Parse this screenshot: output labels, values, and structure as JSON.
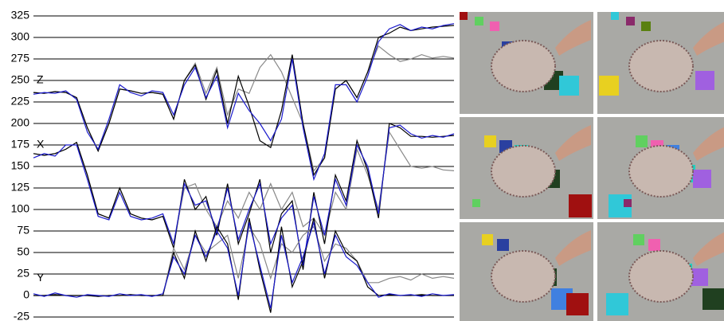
{
  "chart_data": {
    "type": "line",
    "ylim": [
      -25,
      325
    ],
    "yticks": [
      -25,
      0,
      25,
      50,
      75,
      100,
      125,
      150,
      175,
      200,
      225,
      250,
      275,
      300,
      325
    ],
    "grid": true,
    "annotations": [
      "Z",
      "X",
      "Y"
    ],
    "series": [
      {
        "color": "#888888",
        "values": [
          236,
          235,
          237,
          236,
          230,
          195,
          168,
          200,
          240,
          238,
          235,
          236,
          234,
          205,
          250,
          270,
          235,
          265,
          210,
          240,
          235,
          265,
          280,
          260,
          230,
          200,
          145,
          160,
          240,
          250,
          230,
          260,
          290,
          280,
          272,
          275,
          280,
          276,
          278,
          276
        ]
      },
      {
        "color": "#000000",
        "values": [
          236,
          235,
          237,
          236,
          230,
          195,
          168,
          200,
          240,
          238,
          235,
          236,
          234,
          205,
          250,
          268,
          228,
          262,
          200,
          255,
          220,
          180,
          172,
          215,
          280,
          200,
          140,
          160,
          240,
          250,
          230,
          260,
          300,
          305,
          312,
          308,
          310,
          312,
          313,
          314
        ]
      },
      {
        "color": "#1a1acc",
        "values": [
          234,
          236,
          235,
          238,
          228,
          190,
          170,
          205,
          245,
          236,
          232,
          238,
          236,
          210,
          245,
          265,
          230,
          255,
          195,
          235,
          215,
          200,
          180,
          205,
          275,
          195,
          135,
          165,
          245,
          245,
          225,
          255,
          295,
          310,
          315,
          308,
          312,
          310,
          314,
          316
        ]
      },
      {
        "color": "#888888",
        "values": [
          165,
          163,
          165,
          170,
          178,
          140,
          95,
          90,
          125,
          95,
          90,
          88,
          92,
          60,
          125,
          130,
          100,
          80,
          110,
          90,
          120,
          100,
          130,
          100,
          120,
          80,
          90,
          70,
          120,
          100,
          170,
          140,
          100,
          190,
          170,
          150,
          148,
          150,
          146,
          145
        ]
      },
      {
        "color": "#000000",
        "values": [
          165,
          163,
          165,
          170,
          178,
          140,
          95,
          90,
          125,
          95,
          90,
          88,
          92,
          55,
          135,
          100,
          115,
          70,
          130,
          60,
          95,
          135,
          50,
          95,
          110,
          30,
          120,
          60,
          140,
          110,
          180,
          145,
          90,
          200,
          195,
          185,
          185,
          184,
          185,
          186
        ]
      },
      {
        "color": "#1a1acc",
        "values": [
          160,
          165,
          162,
          175,
          175,
          135,
          92,
          88,
          120,
          92,
          88,
          90,
          95,
          60,
          130,
          105,
          110,
          75,
          125,
          65,
          100,
          130,
          60,
          90,
          105,
          35,
          115,
          70,
          135,
          105,
          175,
          150,
          95,
          195,
          198,
          188,
          183,
          186,
          184,
          188
        ]
      },
      {
        "color": "#888888",
        "values": [
          0,
          0,
          1,
          0,
          0,
          0,
          -1,
          0,
          0,
          1,
          0,
          0,
          0,
          55,
          30,
          70,
          50,
          60,
          70,
          20,
          80,
          60,
          20,
          60,
          50,
          70,
          80,
          40,
          60,
          55,
          40,
          15,
          15,
          20,
          22,
          18,
          25,
          20,
          22,
          20
        ]
      },
      {
        "color": "#000000",
        "values": [
          0,
          0,
          1,
          0,
          0,
          0,
          -1,
          0,
          0,
          1,
          0,
          0,
          0,
          50,
          20,
          75,
          40,
          80,
          60,
          -5,
          90,
          30,
          -20,
          80,
          10,
          40,
          90,
          20,
          75,
          50,
          40,
          10,
          0,
          1,
          0,
          0,
          1,
          0,
          0,
          0
        ]
      },
      {
        "color": "#1a1acc",
        "values": [
          2,
          -1,
          3,
          0,
          -2,
          1,
          0,
          -1,
          2,
          0,
          1,
          -1,
          2,
          45,
          25,
          70,
          45,
          75,
          55,
          0,
          85,
          35,
          -15,
          70,
          15,
          45,
          85,
          25,
          70,
          45,
          35,
          15,
          -2,
          2,
          0,
          1,
          -1,
          2,
          0,
          1
        ]
      }
    ]
  }
}
